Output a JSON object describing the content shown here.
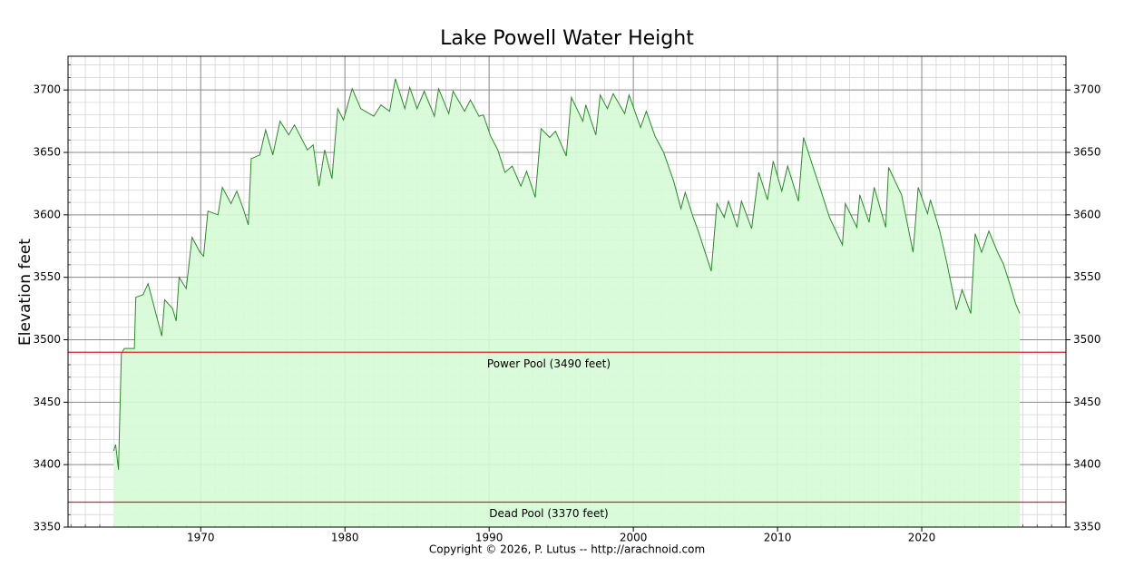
{
  "chart_data": {
    "type": "area",
    "title": "Lake Powell Water Height",
    "ylabel": "Elevation feet",
    "footer": "Copyright © 2026, P. Lutus -- http://arachnoid.com",
    "xlim": [
      1960.8,
      2030
    ],
    "ylim": [
      3350,
      3727
    ],
    "y2lim": [
      3350,
      3727
    ],
    "xticks": [
      1970,
      1980,
      1990,
      2000,
      2010,
      2020
    ],
    "yticks": [
      3350,
      3400,
      3450,
      3500,
      3550,
      3600,
      3650,
      3700
    ],
    "y2ticks": [
      3350,
      3400,
      3450,
      3500,
      3550,
      3600,
      3650,
      3700
    ],
    "grid": true,
    "minor_grid": {
      "x": 10,
      "y": 5
    },
    "reference_lines": [
      {
        "value": 3490,
        "label": "Power Pool (3490 feet)",
        "color": "#e02020"
      },
      {
        "value": 3370,
        "label": "Dead Pool (3370 feet)",
        "color": "#e02020"
      }
    ],
    "series": [
      {
        "name": "Elevation",
        "color": "#2a8a2a",
        "fill": "#d6fbd6",
        "x": [
          1963.96,
          1964.1,
          1964.3,
          1964.5,
          1964.7,
          1965.4,
          1965.5,
          1966.0,
          1966.35,
          1966.8,
          1967.3,
          1967.5,
          1968.05,
          1968.3,
          1968.5,
          1969.0,
          1969.4,
          1969.95,
          1970.2,
          1970.5,
          1971.2,
          1971.5,
          1972.1,
          1972.5,
          1972.95,
          1973.3,
          1973.5,
          1974.1,
          1974.5,
          1975.0,
          1975.5,
          1976.1,
          1976.5,
          1977.4,
          1977.8,
          1978.2,
          1978.6,
          1979.1,
          1979.5,
          1979.9,
          1980.5,
          1981.1,
          1982.0,
          1982.5,
          1983.1,
          1983.5,
          1984.15,
          1984.5,
          1985.0,
          1985.5,
          1986.2,
          1986.5,
          1987.2,
          1987.5,
          1988.3,
          1988.7,
          1989.3,
          1989.6,
          1990.1,
          1990.6,
          1991.1,
          1991.6,
          1992.2,
          1992.6,
          1993.2,
          1993.6,
          1994.2,
          1994.6,
          1995.35,
          1995.7,
          1996.5,
          1996.7,
          1997.4,
          1997.7,
          1998.2,
          1998.6,
          1999.4,
          1999.7,
          2000.5,
          2000.9,
          2001.5,
          2002.1,
          2002.8,
          2003.3,
          2003.6,
          2004.15,
          2004.5,
          2005.4,
          2005.8,
          2006.3,
          2006.6,
          2007.2,
          2007.5,
          2008.2,
          2008.7,
          2009.3,
          2009.7,
          2010.3,
          2010.7,
          2011.45,
          2011.8,
          2012.5,
          2013.1,
          2013.6,
          2014.5,
          2014.7,
          2015.5,
          2015.7,
          2016.35,
          2016.7,
          2017.5,
          2017.7,
          2018.6,
          2019.4,
          2019.75,
          2020.4,
          2020.6,
          2021.25,
          2021.75,
          2022.4,
          2022.8,
          2023.4,
          2023.7,
          2024.15,
          2024.65,
          2025.3,
          2025.65,
          2026.15,
          2026.5,
          2026.8
        ],
        "values": [
          3411,
          3416,
          3396,
          3489,
          3493,
          3493,
          3534,
          3536,
          3545,
          3525,
          3503,
          3532,
          3525,
          3515,
          3550,
          3541,
          3582,
          3570,
          3567,
          3603,
          3600,
          3622,
          3609,
          3619,
          3605,
          3592,
          3645,
          3648,
          3668,
          3648,
          3675,
          3664,
          3672,
          3652,
          3656,
          3623,
          3652,
          3629,
          3685,
          3676,
          3701,
          3685,
          3679,
          3688,
          3683,
          3709,
          3685,
          3702,
          3685,
          3699,
          3679,
          3701,
          3681,
          3699,
          3683,
          3692,
          3679,
          3680,
          3663,
          3652,
          3634,
          3639,
          3623,
          3635,
          3614,
          3669,
          3662,
          3667,
          3647,
          3694,
          3675,
          3688,
          3664,
          3696,
          3685,
          3697,
          3681,
          3696,
          3670,
          3683,
          3663,
          3650,
          3627,
          3605,
          3618,
          3598,
          3587,
          3555,
          3609,
          3598,
          3611,
          3590,
          3611,
          3589,
          3634,
          3612,
          3643,
          3619,
          3639,
          3611,
          3662,
          3637,
          3616,
          3598,
          3576,
          3609,
          3590,
          3616,
          3594,
          3622,
          3590,
          3638,
          3616,
          3570,
          3622,
          3601,
          3612,
          3587,
          3561,
          3524,
          3540,
          3521,
          3585,
          3570,
          3587,
          3569,
          3561,
          3543,
          3529,
          3521
        ]
      }
    ]
  }
}
